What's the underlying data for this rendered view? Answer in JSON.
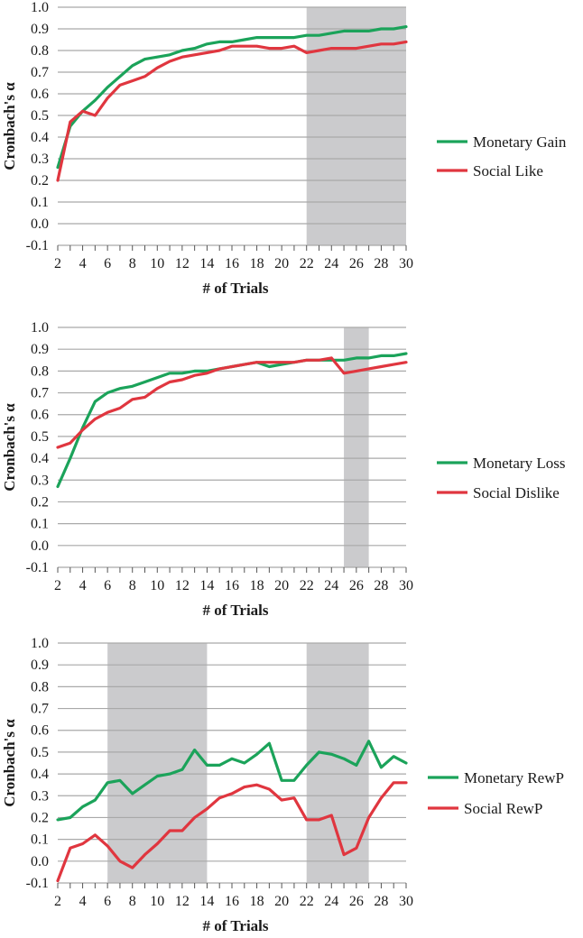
{
  "colors": {
    "series_a": "#1ba35a",
    "series_b": "#e0363f",
    "highlight": "#cbcbcd",
    "grid": "#a9a9a9"
  },
  "chart_data": [
    {
      "type": "line",
      "xlabel": "# of Trials",
      "ylabel": "Cronbach's α",
      "x": [
        2,
        3,
        4,
        5,
        6,
        7,
        8,
        9,
        10,
        11,
        12,
        13,
        14,
        15,
        16,
        17,
        18,
        19,
        20,
        21,
        22,
        23,
        24,
        25,
        26,
        27,
        28,
        29,
        30
      ],
      "x_tick_labels": [
        "2",
        "4",
        "6",
        "8",
        "10",
        "12",
        "14",
        "16",
        "18",
        "20",
        "22",
        "24",
        "26",
        "28",
        "30"
      ],
      "y_tick_labels": [
        "-0.1",
        "0.0",
        "0.1",
        "0.2",
        "0.3",
        "0.4",
        "0.5",
        "0.6",
        "0.7",
        "0.8",
        "0.9",
        "1.0"
      ],
      "ylim": [
        -0.1,
        1.0
      ],
      "grid": true,
      "legend_position": "right",
      "shaded_ranges": [
        [
          22,
          30
        ]
      ],
      "series": [
        {
          "name": "Monetary Gain",
          "values": [
            0.26,
            0.45,
            0.52,
            0.57,
            0.63,
            0.68,
            0.73,
            0.76,
            0.77,
            0.78,
            0.8,
            0.81,
            0.83,
            0.84,
            0.84,
            0.85,
            0.86,
            0.86,
            0.86,
            0.86,
            0.87,
            0.87,
            0.88,
            0.89,
            0.89,
            0.89,
            0.9,
            0.9,
            0.91
          ]
        },
        {
          "name": "Social Like",
          "values": [
            0.2,
            0.47,
            0.52,
            0.5,
            0.58,
            0.64,
            0.66,
            0.68,
            0.72,
            0.75,
            0.77,
            0.78,
            0.79,
            0.8,
            0.82,
            0.82,
            0.82,
            0.81,
            0.81,
            0.82,
            0.79,
            0.8,
            0.81,
            0.81,
            0.81,
            0.82,
            0.83,
            0.83,
            0.84
          ]
        }
      ]
    },
    {
      "type": "line",
      "xlabel": "# of Trials",
      "ylabel": "Cronbach's α",
      "x": [
        2,
        3,
        4,
        5,
        6,
        7,
        8,
        9,
        10,
        11,
        12,
        13,
        14,
        15,
        16,
        17,
        18,
        19,
        20,
        21,
        22,
        23,
        24,
        25,
        26,
        27,
        28,
        29,
        30
      ],
      "x_tick_labels": [
        "2",
        "4",
        "6",
        "8",
        "10",
        "12",
        "14",
        "16",
        "18",
        "20",
        "22",
        "24",
        "26",
        "28",
        "30"
      ],
      "y_tick_labels": [
        "-0.1",
        "0.0",
        "0.1",
        "0.2",
        "0.3",
        "0.4",
        "0.5",
        "0.6",
        "0.7",
        "0.8",
        "0.9",
        "1.0"
      ],
      "ylim": [
        -0.1,
        1.0
      ],
      "grid": true,
      "legend_position": "right",
      "shaded_ranges": [
        [
          25,
          27
        ]
      ],
      "series": [
        {
          "name": "Monetary Loss",
          "values": [
            0.27,
            0.4,
            0.54,
            0.66,
            0.7,
            0.72,
            0.73,
            0.75,
            0.77,
            0.79,
            0.79,
            0.8,
            0.8,
            0.81,
            0.82,
            0.83,
            0.84,
            0.82,
            0.83,
            0.84,
            0.85,
            0.85,
            0.85,
            0.85,
            0.86,
            0.86,
            0.87,
            0.87,
            0.88
          ]
        },
        {
          "name": "Social Dislike",
          "values": [
            0.45,
            0.47,
            0.53,
            0.58,
            0.61,
            0.63,
            0.67,
            0.68,
            0.72,
            0.75,
            0.76,
            0.78,
            0.79,
            0.81,
            0.82,
            0.83,
            0.84,
            0.84,
            0.84,
            0.84,
            0.85,
            0.85,
            0.86,
            0.79,
            0.8,
            0.81,
            0.82,
            0.83,
            0.84
          ]
        }
      ]
    },
    {
      "type": "line",
      "xlabel": "# of Trials",
      "ylabel": "Cronbach's α",
      "x": [
        2,
        3,
        4,
        5,
        6,
        7,
        8,
        9,
        10,
        11,
        12,
        13,
        14,
        15,
        16,
        17,
        18,
        19,
        20,
        21,
        22,
        23,
        24,
        25,
        26,
        27,
        28,
        29,
        30
      ],
      "x_tick_labels": [
        "2",
        "4",
        "6",
        "8",
        "10",
        "12",
        "14",
        "16",
        "18",
        "20",
        "22",
        "24",
        "26",
        "28",
        "30"
      ],
      "y_tick_labels": [
        "-0.1",
        "0.0",
        "0.1",
        "0.2",
        "0.3",
        "0.4",
        "0.5",
        "0.6",
        "0.7",
        "0.8",
        "0.9",
        "1.0"
      ],
      "ylim": [
        -0.1,
        1.0
      ],
      "grid": true,
      "legend_position": "right",
      "shaded_ranges": [
        [
          6,
          14
        ],
        [
          22,
          27
        ]
      ],
      "series": [
        {
          "name": "Monetary RewP",
          "values": [
            0.19,
            0.2,
            0.25,
            0.28,
            0.36,
            0.37,
            0.31,
            0.35,
            0.39,
            0.4,
            0.42,
            0.51,
            0.44,
            0.44,
            0.47,
            0.45,
            0.49,
            0.54,
            0.37,
            0.37,
            0.44,
            0.5,
            0.49,
            0.47,
            0.44,
            0.55,
            0.43,
            0.48,
            0.45
          ]
        },
        {
          "name": "Social RewP",
          "values": [
            -0.09,
            0.06,
            0.08,
            0.12,
            0.07,
            0.0,
            -0.03,
            0.03,
            0.08,
            0.14,
            0.14,
            0.2,
            0.24,
            0.29,
            0.31,
            0.34,
            0.35,
            0.33,
            0.28,
            0.29,
            0.19,
            0.19,
            0.21,
            0.03,
            0.06,
            0.2,
            0.29,
            0.36,
            0.36
          ]
        }
      ]
    }
  ]
}
